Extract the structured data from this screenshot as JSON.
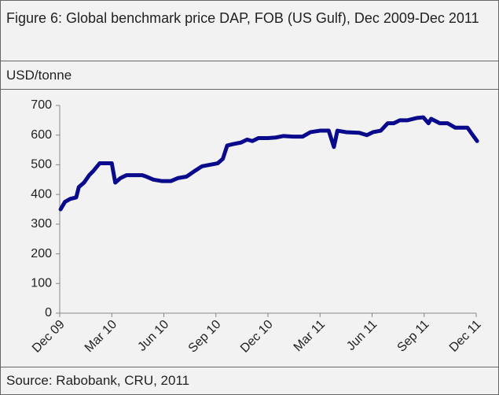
{
  "chart_data": {
    "type": "line",
    "title": "Figure 6: Global benchmark price DAP, FOB (US Gulf), Dec 2009-Dec 2011",
    "ylabel": "USD/tonne",
    "source": "Source: Rabobank, CRU, 2011",
    "x": [
      0.05,
      0.3,
      0.6,
      0.95,
      1.1,
      1.4,
      1.7,
      1.95,
      2.3,
      2.65,
      3.0,
      3.2,
      3.5,
      3.85,
      4.3,
      4.75,
      5.0,
      5.4,
      5.9,
      6.4,
      6.8,
      7.3,
      7.8,
      8.2,
      8.65,
      9.1,
      9.4,
      9.65,
      10.0,
      10.45,
      10.8,
      11.1,
      11.45,
      12.0,
      12.45,
      12.9,
      13.45,
      14.0,
      14.45,
      15.0,
      15.5,
      15.8,
      16.0,
      16.5,
      17.25,
      17.7,
      18.05,
      18.5,
      18.9,
      19.25,
      19.6,
      20.05,
      20.6,
      20.95,
      21.25,
      21.4,
      21.9,
      22.35,
      22.8,
      23.5,
      23.8,
      24.05
    ],
    "series": [
      {
        "name": "DAP FOB US Gulf",
        "color": "#0a0a8c",
        "values": [
          350,
          375,
          385,
          390,
          425,
          440,
          465,
          480,
          505,
          505,
          505,
          440,
          455,
          465,
          465,
          465,
          460,
          450,
          445,
          445,
          455,
          460,
          480,
          495,
          500,
          505,
          520,
          565,
          570,
          575,
          585,
          580,
          590,
          590,
          592,
          597,
          595,
          595,
          610,
          615,
          615,
          560,
          615,
          610,
          608,
          600,
          610,
          615,
          640,
          640,
          650,
          650,
          658,
          660,
          640,
          655,
          640,
          640,
          625,
          625,
          600,
          580
        ]
      }
    ],
    "xlim": [
      0,
      24
    ],
    "xticks": [
      {
        "value": 0,
        "label": "Dec 09"
      },
      {
        "value": 3,
        "label": "Mar 10"
      },
      {
        "value": 6,
        "label": "Jun 10"
      },
      {
        "value": 9,
        "label": "Sep 10"
      },
      {
        "value": 12,
        "label": "Dec 10"
      },
      {
        "value": 15,
        "label": "Mar 11"
      },
      {
        "value": 18,
        "label": "Jun 11"
      },
      {
        "value": 21,
        "label": "Sep 11"
      },
      {
        "value": 24,
        "label": "Dec 11"
      }
    ],
    "ylim": [
      0,
      700
    ],
    "yticks": [
      0,
      100,
      200,
      300,
      400,
      500,
      600,
      700
    ],
    "grid": false
  }
}
